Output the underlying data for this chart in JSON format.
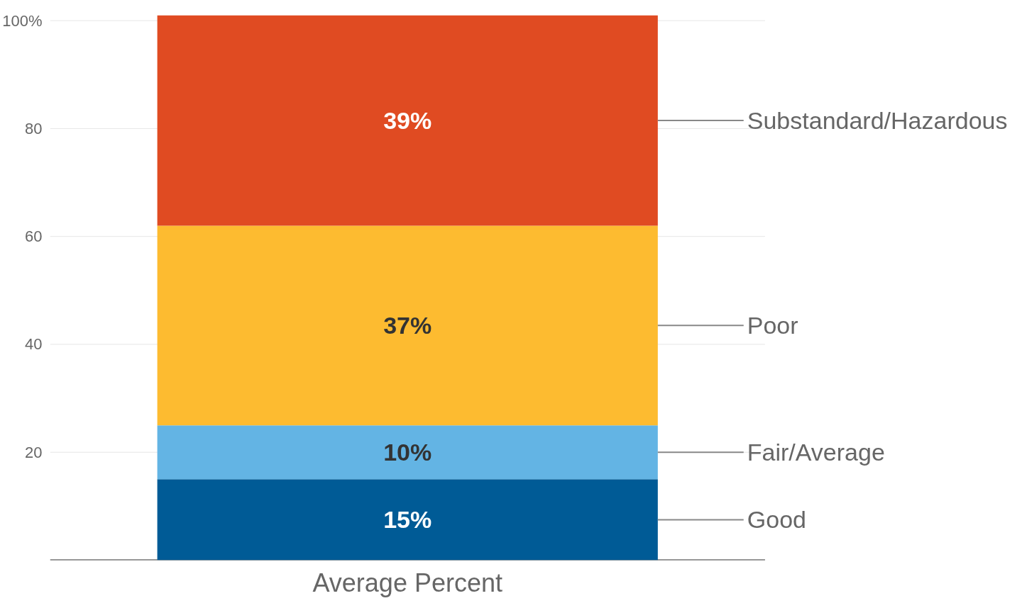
{
  "chart_data": {
    "type": "bar",
    "stacked": true,
    "categories": [
      "Average Percent"
    ],
    "series": [
      {
        "name": "Good",
        "color": "#005b96",
        "values": [
          15
        ],
        "value_labels": [
          "15%"
        ]
      },
      {
        "name": "Fair/Average",
        "color": "#63b4e4",
        "values": [
          10
        ],
        "value_labels": [
          "10%"
        ]
      },
      {
        "name": "Poor",
        "color": "#fdbb30",
        "values": [
          37
        ],
        "value_labels": [
          "37%"
        ]
      },
      {
        "name": "Substandard/Hazardous",
        "color": "#e04b22",
        "values": [
          39
        ],
        "value_labels": [
          "39%"
        ]
      }
    ],
    "ylim": [
      0,
      101
    ],
    "yticks": [
      20,
      40,
      60,
      80,
      {
        "value": 100,
        "label": "100%"
      }
    ],
    "grid": "y"
  }
}
